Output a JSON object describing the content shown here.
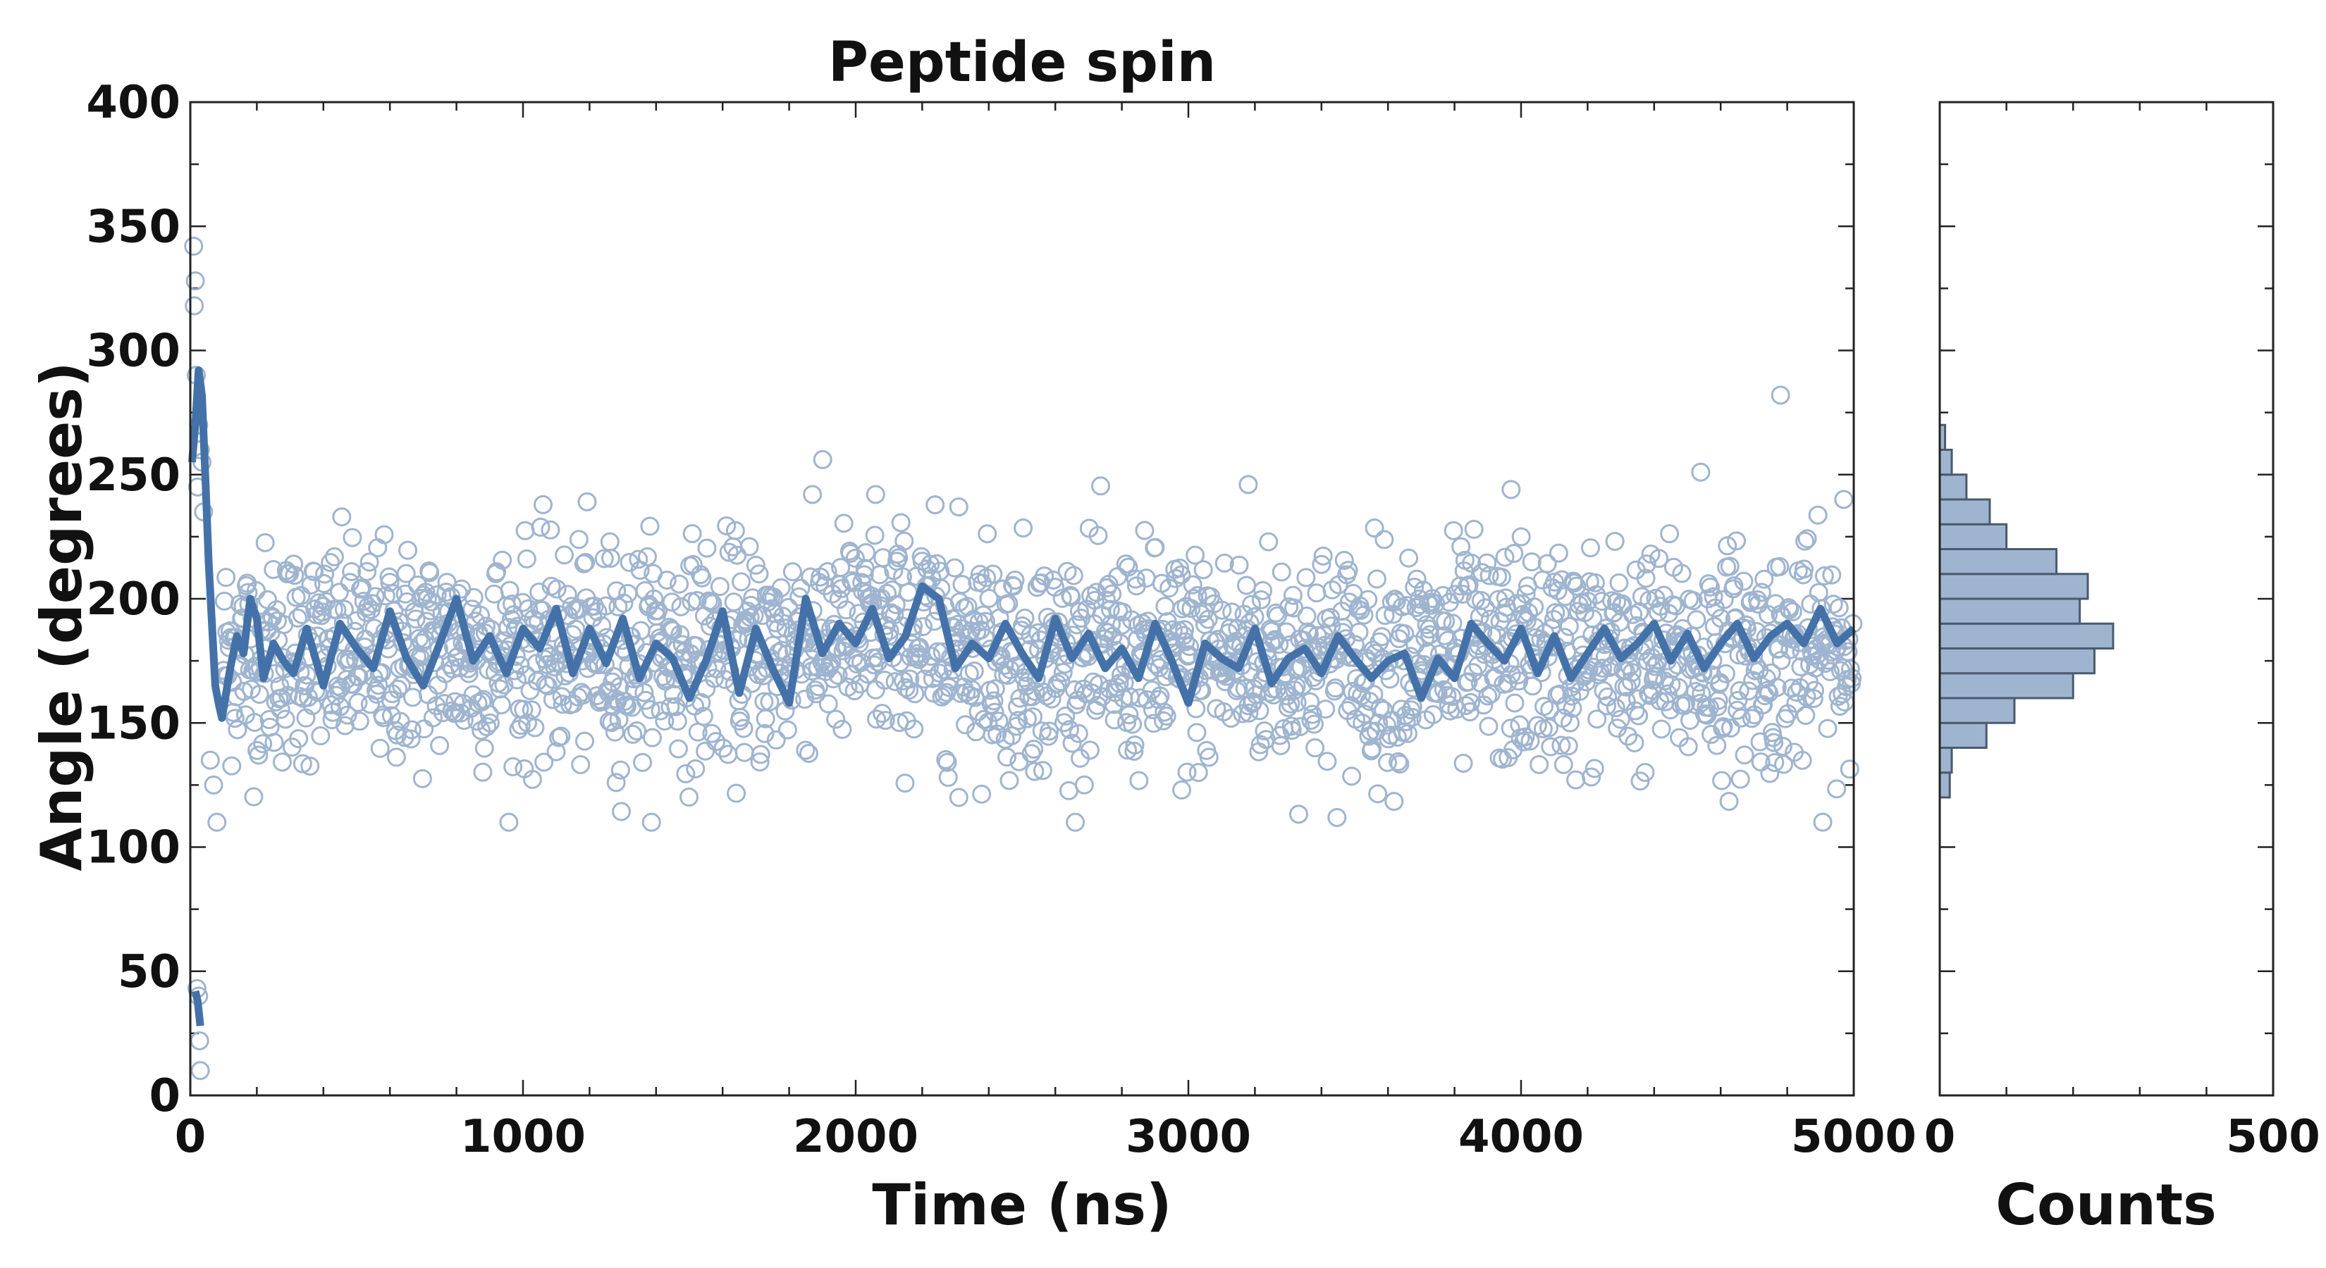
{
  "chart_data": [
    {
      "type": "scatter",
      "title": "Peptide spin",
      "xlabel": "Time (ns)",
      "ylabel": "Angle (degrees)",
      "xlim": [
        0,
        5000
      ],
      "ylim": [
        0,
        400
      ],
      "xticks": [
        "0",
        "1000",
        "2000",
        "3000",
        "4000",
        "5000"
      ],
      "yticks": [
        "0",
        "50",
        "100",
        "150",
        "200",
        "250",
        "300",
        "350",
        "400"
      ],
      "grid": false,
      "point_color": "#9fb4cf",
      "line_color": "#4472a8",
      "scatter_summary": {
        "n_points": 2000,
        "typical_center": 180,
        "typical_spread": 22,
        "range_after_100ns": [
          110,
          280
        ]
      },
      "early_points": [
        {
          "x": 10,
          "y": 342
        },
        {
          "x": 15,
          "y": 328
        },
        {
          "x": 12,
          "y": 318
        },
        {
          "x": 18,
          "y": 290
        },
        {
          "x": 25,
          "y": 270
        },
        {
          "x": 30,
          "y": 260
        },
        {
          "x": 35,
          "y": 255
        },
        {
          "x": 22,
          "y": 245
        },
        {
          "x": 40,
          "y": 235
        },
        {
          "x": 20,
          "y": 43
        },
        {
          "x": 25,
          "y": 40
        },
        {
          "x": 28,
          "y": 22
        },
        {
          "x": 30,
          "y": 10
        },
        {
          "x": 60,
          "y": 135
        },
        {
          "x": 70,
          "y": 125
        },
        {
          "x": 80,
          "y": 110
        }
      ],
      "notable_points": [
        {
          "x": 4780,
          "y": 282
        },
        {
          "x": 4540,
          "y": 251
        },
        {
          "x": 3180,
          "y": 246
        },
        {
          "x": 3970,
          "y": 244
        },
        {
          "x": 1870,
          "y": 242
        },
        {
          "x": 2060,
          "y": 242
        },
        {
          "x": 4970,
          "y": 240
        },
        {
          "x": 2310,
          "y": 120
        },
        {
          "x": 2980,
          "y": 123
        },
        {
          "x": 1280,
          "y": 126
        }
      ],
      "rolling_mean": {
        "x": [
          5,
          15,
          25,
          35,
          45,
          55,
          65,
          75,
          85,
          95,
          105,
          120,
          140,
          160,
          180,
          200,
          220,
          250,
          280,
          310,
          350,
          400,
          450,
          500,
          550,
          600,
          650,
          700,
          750,
          800,
          850,
          900,
          950,
          1000,
          1050,
          1100,
          1150,
          1200,
          1250,
          1300,
          1350,
          1400,
          1450,
          1500,
          1550,
          1600,
          1650,
          1700,
          1750,
          1800,
          1850,
          1900,
          1950,
          2000,
          2050,
          2100,
          2150,
          2200,
          2250,
          2300,
          2350,
          2400,
          2450,
          2500,
          2550,
          2600,
          2650,
          2700,
          2750,
          2800,
          2850,
          2900,
          2950,
          3000,
          3050,
          3100,
          3150,
          3200,
          3250,
          3300,
          3350,
          3400,
          3450,
          3500,
          3550,
          3600,
          3650,
          3700,
          3750,
          3800,
          3850,
          3900,
          3950,
          4000,
          4050,
          4100,
          4150,
          4200,
          4250,
          4300,
          4350,
          4400,
          4450,
          4500,
          4550,
          4600,
          4650,
          4700,
          4750,
          4800,
          4850,
          4900,
          4950,
          5000
        ],
        "y": [
          255,
          270,
          292,
          282,
          250,
          215,
          190,
          165,
          158,
          152,
          160,
          172,
          185,
          178,
          200,
          192,
          168,
          182,
          175,
          170,
          188,
          165,
          190,
          180,
          172,
          195,
          176,
          165,
          182,
          200,
          175,
          185,
          170,
          188,
          180,
          196,
          170,
          188,
          174,
          192,
          168,
          182,
          176,
          160,
          175,
          195,
          162,
          188,
          172,
          158,
          200,
          178,
          190,
          182,
          196,
          176,
          185,
          205,
          200,
          172,
          182,
          176,
          190,
          178,
          168,
          192,
          176,
          186,
          172,
          180,
          168,
          190,
          175,
          158,
          182,
          176,
          172,
          188,
          166,
          176,
          180,
          170,
          185,
          176,
          168,
          175,
          178,
          160,
          176,
          168,
          190,
          182,
          175,
          188,
          170,
          185,
          168,
          178,
          188,
          176,
          182,
          190,
          175,
          186,
          172,
          182,
          190,
          176,
          185,
          190,
          182,
          196,
          182,
          188
        ]
      },
      "early_line_segment": {
        "x": [
          15,
          22,
          30
        ],
        "y": [
          42,
          38,
          28
        ]
      }
    },
    {
      "type": "bar",
      "orientation": "horizontal",
      "xlabel": "Counts",
      "xlim": [
        0,
        500
      ],
      "xticks": [
        "0",
        "500"
      ],
      "ylim": [
        0,
        400
      ],
      "bar_color": "#9fb4cf",
      "bar_edge": "#4a5a6e",
      "bins": [
        {
          "y0": 120,
          "y1": 130,
          "count": 15
        },
        {
          "y0": 130,
          "y1": 140,
          "count": 18
        },
        {
          "y0": 140,
          "y1": 150,
          "count": 70
        },
        {
          "y0": 150,
          "y1": 160,
          "count": 112
        },
        {
          "y0": 160,
          "y1": 170,
          "count": 200
        },
        {
          "y0": 170,
          "y1": 180,
          "count": 232
        },
        {
          "y0": 180,
          "y1": 190,
          "count": 260
        },
        {
          "y0": 190,
          "y1": 200,
          "count": 210
        },
        {
          "y0": 200,
          "y1": 210,
          "count": 222
        },
        {
          "y0": 210,
          "y1": 220,
          "count": 175
        },
        {
          "y0": 220,
          "y1": 230,
          "count": 100
        },
        {
          "y0": 230,
          "y1": 240,
          "count": 75
        },
        {
          "y0": 240,
          "y1": 250,
          "count": 40
        },
        {
          "y0": 250,
          "y1": 260,
          "count": 18
        },
        {
          "y0": 260,
          "y1": 270,
          "count": 8
        }
      ]
    }
  ]
}
